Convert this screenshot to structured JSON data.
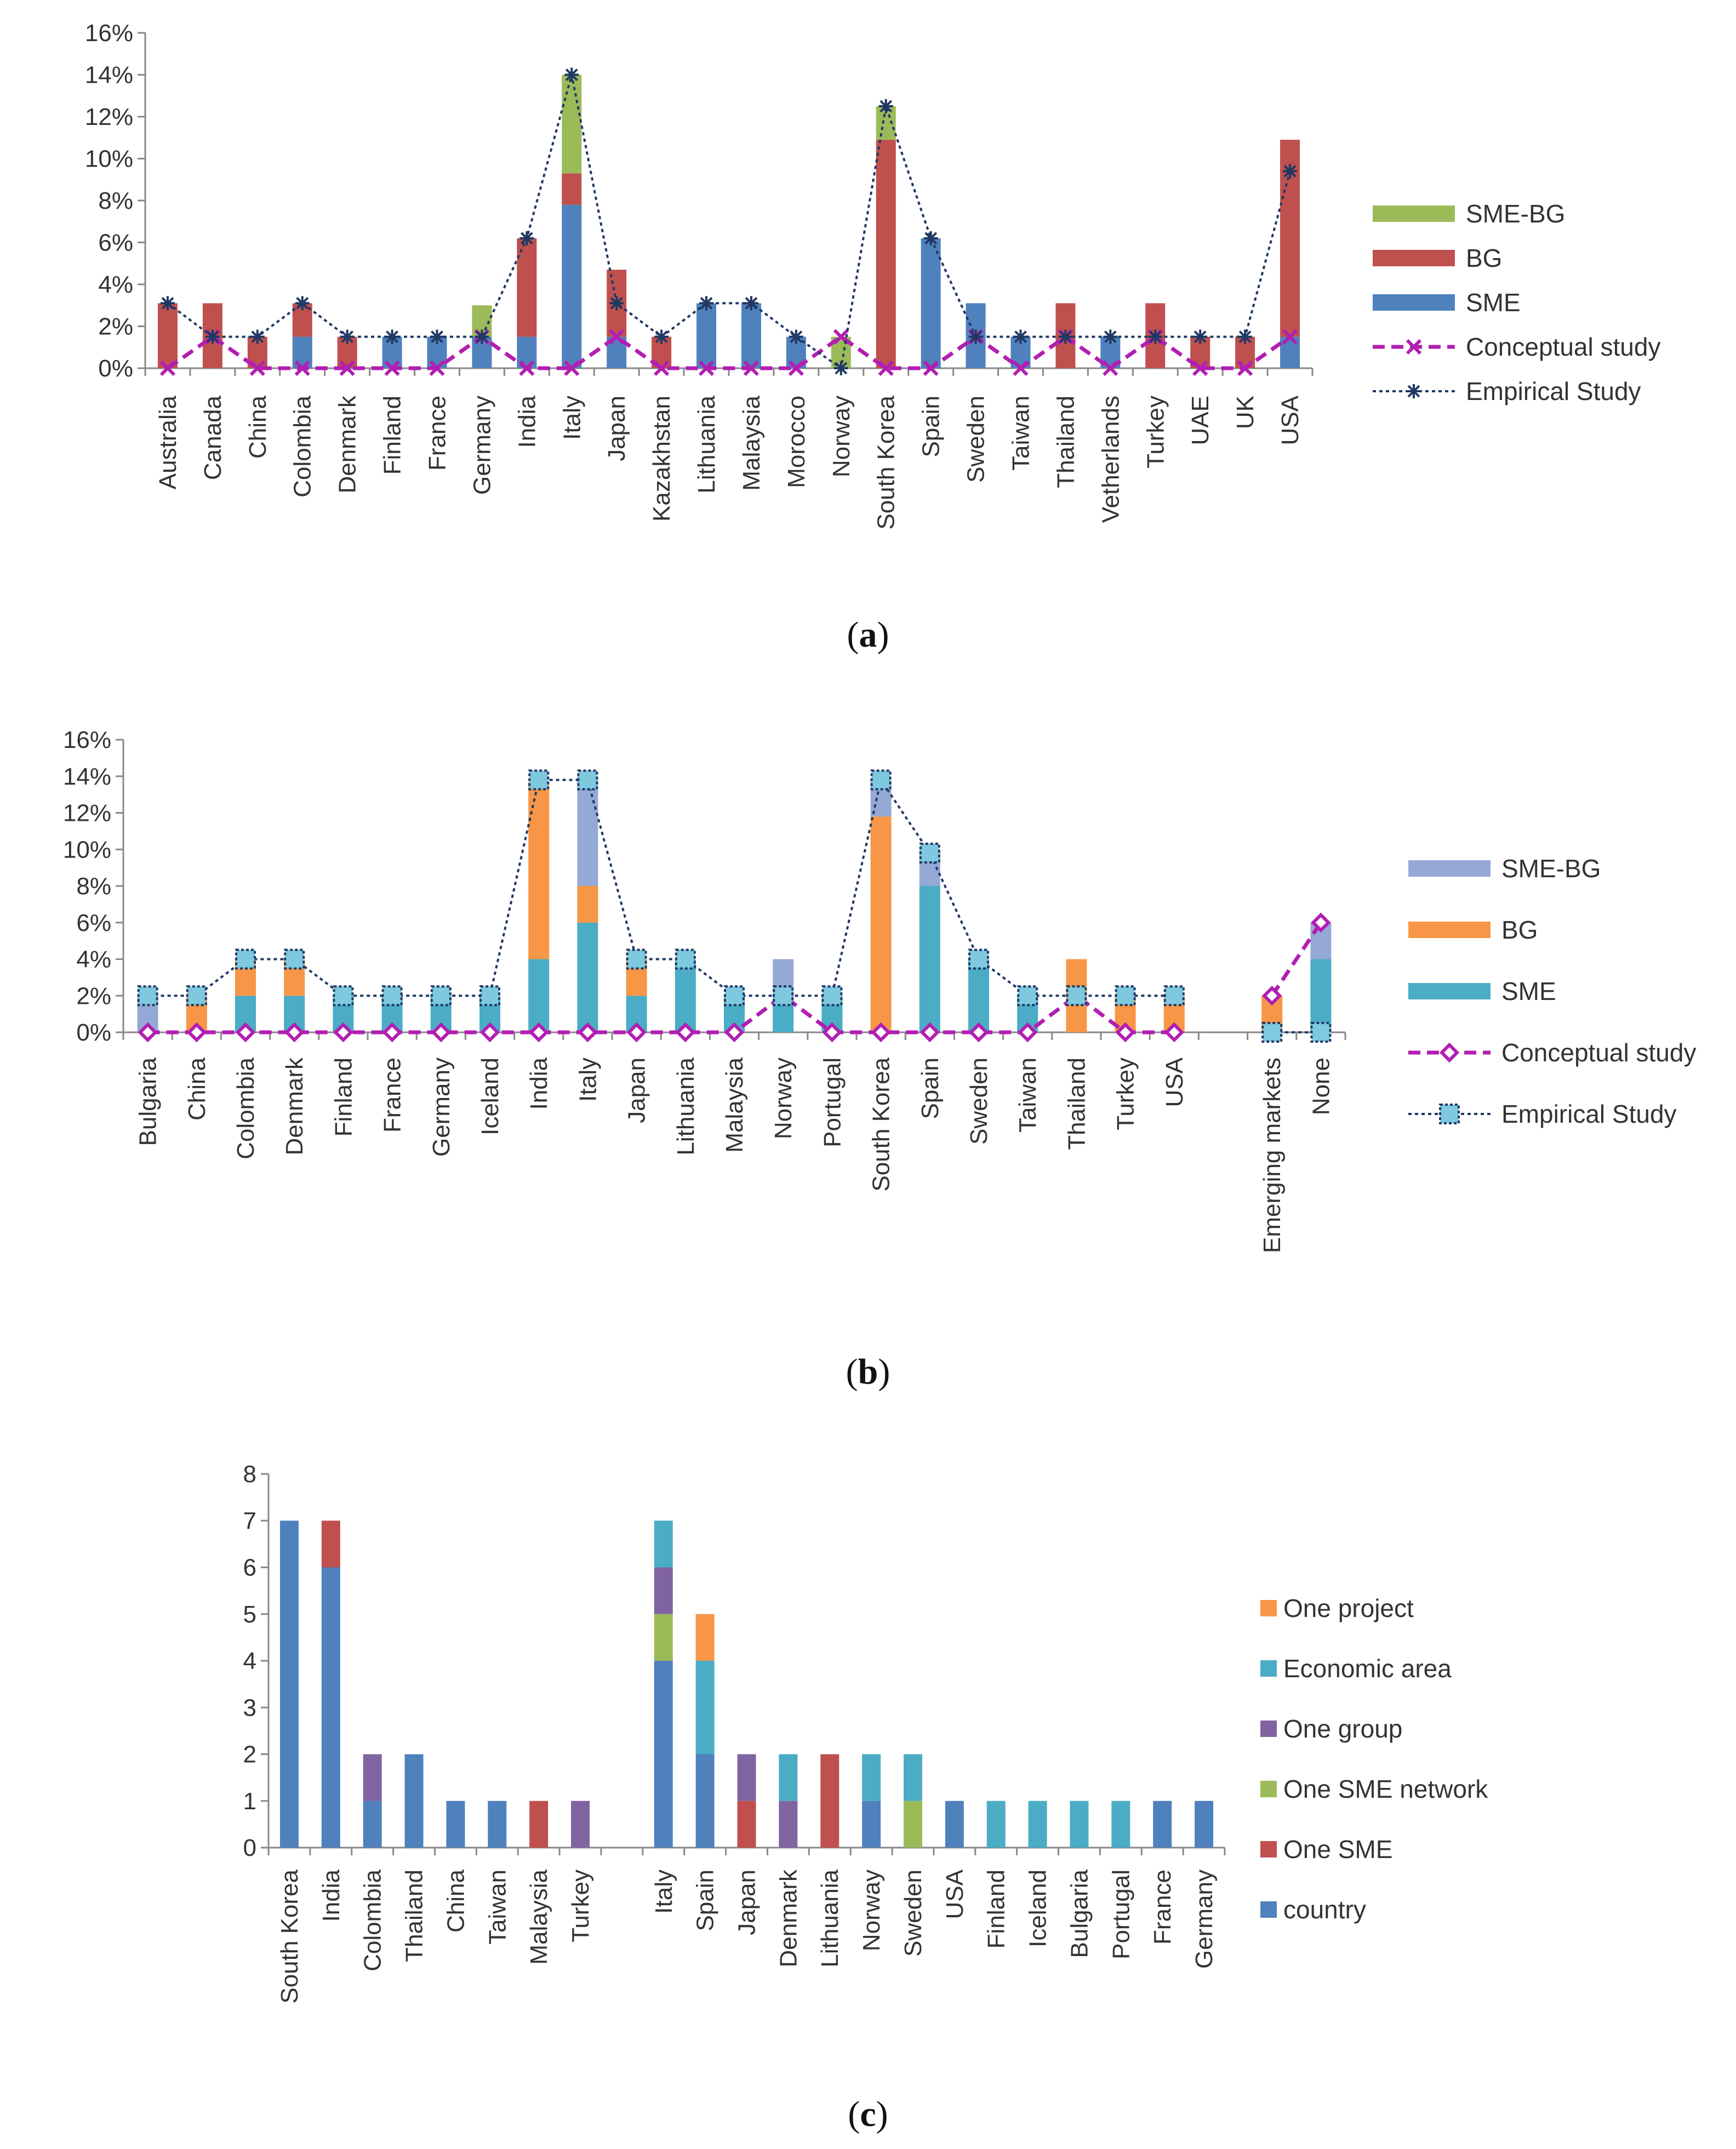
{
  "colors": {
    "a_sme": "#4F81BD",
    "a_bg": "#C0504D",
    "a_smebg": "#9BBB59",
    "b_sme": "#4BACC6",
    "b_bg": "#F79646",
    "b_smebg": "#95A9D6",
    "c_country": "#4F81BD",
    "c_onesme": "#C0504D",
    "c_network": "#9BBB59",
    "c_group": "#8064A2",
    "c_econ": "#4BACC6",
    "c_project": "#F79646",
    "conceptual": "#B21EB2",
    "empirical_a": "#1F3864",
    "empirical_b_marker": "#7EC9DE"
  },
  "chart_data": [
    {
      "id": "a",
      "type": "bar",
      "stacked": true,
      "caption": "a",
      "ylim": [
        0,
        16
      ],
      "yticks": [
        "0%",
        "2%",
        "4%",
        "6%",
        "8%",
        "10%",
        "12%",
        "14%",
        "16%"
      ],
      "categories": [
        "Australia",
        "Canada",
        "China",
        "Colombia",
        "Denmark",
        "Finland",
        "France",
        "Germany",
        "India",
        "Italy",
        "Japan",
        "Kazakhstan",
        "Lithuania",
        "Malaysia",
        "Morocco",
        "Norway",
        "South Korea",
        "Spain",
        "Sweden",
        "Taiwan",
        "Thailand",
        "Vetherlands",
        "Turkey",
        "UAE",
        "UK",
        "USA"
      ],
      "series": [
        {
          "name": "SME",
          "values": [
            0,
            0,
            0,
            1.5,
            0,
            1.5,
            1.5,
            1.5,
            1.5,
            7.8,
            1.5,
            0,
            3.1,
            3.1,
            1.5,
            0,
            0,
            6.2,
            3.1,
            1.5,
            0,
            1.5,
            0,
            0,
            0,
            1.5
          ]
        },
        {
          "name": "BG",
          "values": [
            3.1,
            3.1,
            1.5,
            1.6,
            1.5,
            0,
            0,
            0,
            4.7,
            1.5,
            3.2,
            1.5,
            0,
            0,
            0,
            0,
            10.9,
            0,
            0,
            0,
            3.1,
            0,
            3.1,
            1.5,
            1.5,
            9.4
          ]
        },
        {
          "name": "SME-BG",
          "values": [
            0,
            0,
            0,
            0,
            0,
            0,
            0,
            1.5,
            0,
            4.7,
            0,
            0,
            0,
            0,
            0,
            1.5,
            1.6,
            0,
            0,
            0,
            0,
            0,
            0,
            0,
            0,
            0
          ]
        }
      ],
      "lines": [
        {
          "name": "Conceptual study",
          "values": [
            0,
            1.5,
            0,
            0,
            0,
            0,
            0,
            1.5,
            0,
            0,
            1.5,
            0,
            0,
            0,
            0,
            1.5,
            0,
            0,
            1.5,
            0,
            1.5,
            0,
            1.5,
            0,
            0,
            1.5
          ]
        },
        {
          "name": "Empirical Study",
          "values": [
            3.1,
            1.5,
            1.5,
            3.1,
            1.5,
            1.5,
            1.5,
            1.5,
            6.2,
            14.0,
            3.1,
            1.5,
            3.1,
            3.1,
            1.5,
            0,
            12.5,
            6.2,
            1.5,
            1.5,
            1.5,
            1.5,
            1.5,
            1.5,
            1.5,
            9.4
          ]
        }
      ],
      "legend": [
        "SME-BG",
        "BG",
        "SME",
        "Conceptual study",
        "Empirical Study"
      ]
    },
    {
      "id": "b",
      "type": "bar",
      "stacked": true,
      "caption": "b",
      "ylim": [
        0,
        16
      ],
      "yticks": [
        "0%",
        "2%",
        "4%",
        "6%",
        "8%",
        "10%",
        "12%",
        "14%",
        "16%"
      ],
      "categories": [
        "Bulgaria",
        "China",
        "Colombia",
        "Denmark",
        "Finland",
        "France",
        "Germany",
        "Iceland",
        "India",
        "Italy",
        "Japan",
        "Lithuania",
        "Malaysia",
        "Norway",
        "Portugal",
        "South Korea",
        "Spain",
        "Sweden",
        "Taiwan",
        "Thailand",
        "Turkey",
        "USA",
        "",
        "Emerging markets",
        "None"
      ],
      "series": [
        {
          "name": "SME",
          "values": [
            0,
            0,
            2,
            2,
            2,
            2,
            2,
            2,
            4,
            6,
            2,
            4,
            2,
            2,
            2,
            0,
            8,
            4,
            2,
            0,
            0,
            0,
            0,
            0,
            4
          ]
        },
        {
          "name": "BG",
          "values": [
            0,
            2,
            2,
            2,
            0,
            0,
            0,
            0,
            9.7,
            2,
            2,
            0,
            0,
            0,
            0,
            11.8,
            0,
            0,
            0,
            4,
            2,
            2,
            0,
            2,
            0
          ]
        },
        {
          "name": "SME-BG",
          "values": [
            2,
            0,
            0,
            0,
            0,
            0,
            0,
            0,
            0,
            6,
            0,
            0,
            0,
            2,
            0,
            2,
            2,
            0,
            0,
            0,
            0,
            0,
            0,
            0,
            2
          ]
        }
      ],
      "lines": [
        {
          "name": "Conceptual study",
          "values": [
            0,
            0,
            0,
            0,
            0,
            0,
            0,
            0,
            0,
            0,
            0,
            0,
            0,
            2,
            0,
            0,
            0,
            0,
            0,
            2,
            0,
            0,
            null,
            2,
            6
          ]
        },
        {
          "name": "Empirical Study",
          "values": [
            2,
            2,
            4,
            4,
            2,
            2,
            2,
            2,
            13.8,
            13.8,
            4,
            4,
            2,
            2,
            2,
            13.8,
            9.8,
            4,
            2,
            2,
            2,
            2,
            null,
            0,
            0
          ]
        }
      ],
      "legend": [
        "SME-BG",
        "BG",
        "SME",
        "Conceptual study",
        "Empirical Study"
      ]
    },
    {
      "id": "c",
      "type": "bar",
      "stacked": true,
      "caption": "c",
      "ylim": [
        0,
        8
      ],
      "yticks": [
        "0",
        "1",
        "2",
        "3",
        "4",
        "5",
        "6",
        "7",
        "8"
      ],
      "categories": [
        "South Korea",
        "India",
        "Colombia",
        "Thailand",
        "China",
        "Taiwan",
        "Malaysia",
        "Turkey",
        "",
        "Italy",
        "Spain",
        "Japan",
        "Denmark",
        "Lithuania",
        "Norway",
        "Sweden",
        "USA",
        "Finland",
        "Iceland",
        "Bulgaria",
        "Portugal",
        "France",
        "Germany"
      ],
      "series": [
        {
          "name": "country",
          "values": [
            7,
            6,
            1,
            2,
            1,
            1,
            0,
            0,
            0,
            4,
            2,
            0,
            0,
            0,
            1,
            0,
            1,
            0,
            0,
            0,
            0,
            1,
            1
          ]
        },
        {
          "name": "One SME",
          "values": [
            0,
            1,
            0,
            0,
            0,
            0,
            1,
            0,
            0,
            0,
            0,
            1,
            0,
            2,
            0,
            0,
            0,
            0,
            0,
            0,
            0,
            0,
            0
          ]
        },
        {
          "name": "One SME network",
          "values": [
            0,
            0,
            0,
            0,
            0,
            0,
            0,
            0,
            0,
            1,
            0,
            0,
            0,
            0,
            0,
            1,
            0,
            0,
            0,
            0,
            0,
            0,
            0
          ]
        },
        {
          "name": "One group",
          "values": [
            0,
            0,
            1,
            0,
            0,
            0,
            0,
            1,
            0,
            1,
            0,
            1,
            1,
            0,
            0,
            0,
            0,
            0,
            0,
            0,
            0,
            0,
            0
          ]
        },
        {
          "name": "Economic area",
          "values": [
            0,
            0,
            0,
            0,
            0,
            0,
            0,
            0,
            0,
            1,
            2,
            0,
            1,
            0,
            1,
            1,
            0,
            1,
            1,
            1,
            1,
            0,
            0
          ]
        },
        {
          "name": "One project",
          "values": [
            0,
            0,
            0,
            0,
            0,
            0,
            0,
            0,
            0,
            0,
            1,
            0,
            0,
            0,
            0,
            0,
            0,
            0,
            0,
            0,
            0,
            0,
            0
          ]
        }
      ],
      "legend": [
        "One project",
        "Economic area",
        "One group",
        "One SME network",
        "One SME",
        "country"
      ]
    }
  ]
}
